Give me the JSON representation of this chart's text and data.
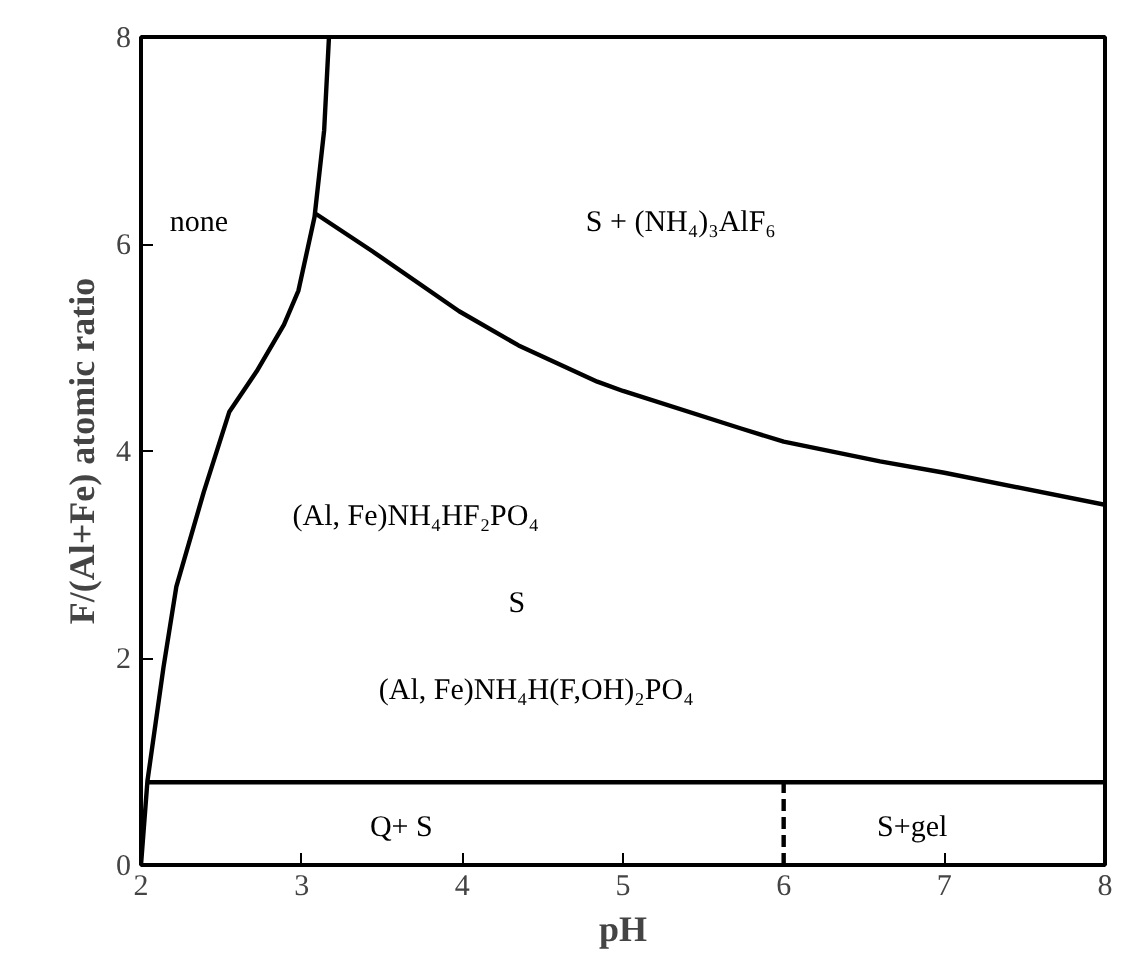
{
  "chart_data": {
    "type": "line",
    "xlabel": "pH",
    "ylabel": "F/(Al+Fe) atomic ratio",
    "xlim": [
      2,
      8
    ],
    "ylim": [
      0,
      8
    ],
    "xticks": [
      2,
      3,
      4,
      5,
      6,
      7,
      8
    ],
    "yticks": [
      0,
      2,
      4,
      6,
      8
    ],
    "grid": false,
    "marker": "none",
    "series": [
      {
        "color": "#000000",
        "x": [
          2.0,
          2.04,
          2.14,
          2.22,
          2.39,
          2.55,
          2.72,
          2.89,
          2.98,
          3.08,
          3.14,
          3.17
        ],
        "values": [
          0,
          0.81,
          1.91,
          2.69,
          3.6,
          4.38,
          4.77,
          5.22,
          5.55,
          6.26,
          7.1,
          8
        ]
      },
      {
        "color": "#000000",
        "x": [
          3.09,
          3.44,
          3.98,
          4.35,
          4.84,
          5.0,
          5.73,
          6.0,
          6.6,
          7.0,
          8.0
        ],
        "values": [
          6.29,
          5.93,
          5.35,
          5.02,
          4.67,
          4.58,
          4.22,
          4.09,
          3.9,
          3.79,
          3.48
        ]
      },
      {
        "color": "#000000",
        "x": [
          2.05,
          8.0
        ],
        "values": [
          0.8,
          0.8
        ]
      },
      {
        "color": "#000000",
        "line_style": "dashed",
        "x": [
          6,
          6
        ],
        "values": [
          0,
          0.8
        ]
      }
    ],
    "annotations": [
      "none",
      "S + (NH₄)₃AlF₆",
      "(Al, Fe)NH₄HF₂PO₄",
      "S",
      "(Al, Fe)NH₄H(F,OH)₂PO₄",
      "Q+ S",
      "S+gel"
    ]
  }
}
